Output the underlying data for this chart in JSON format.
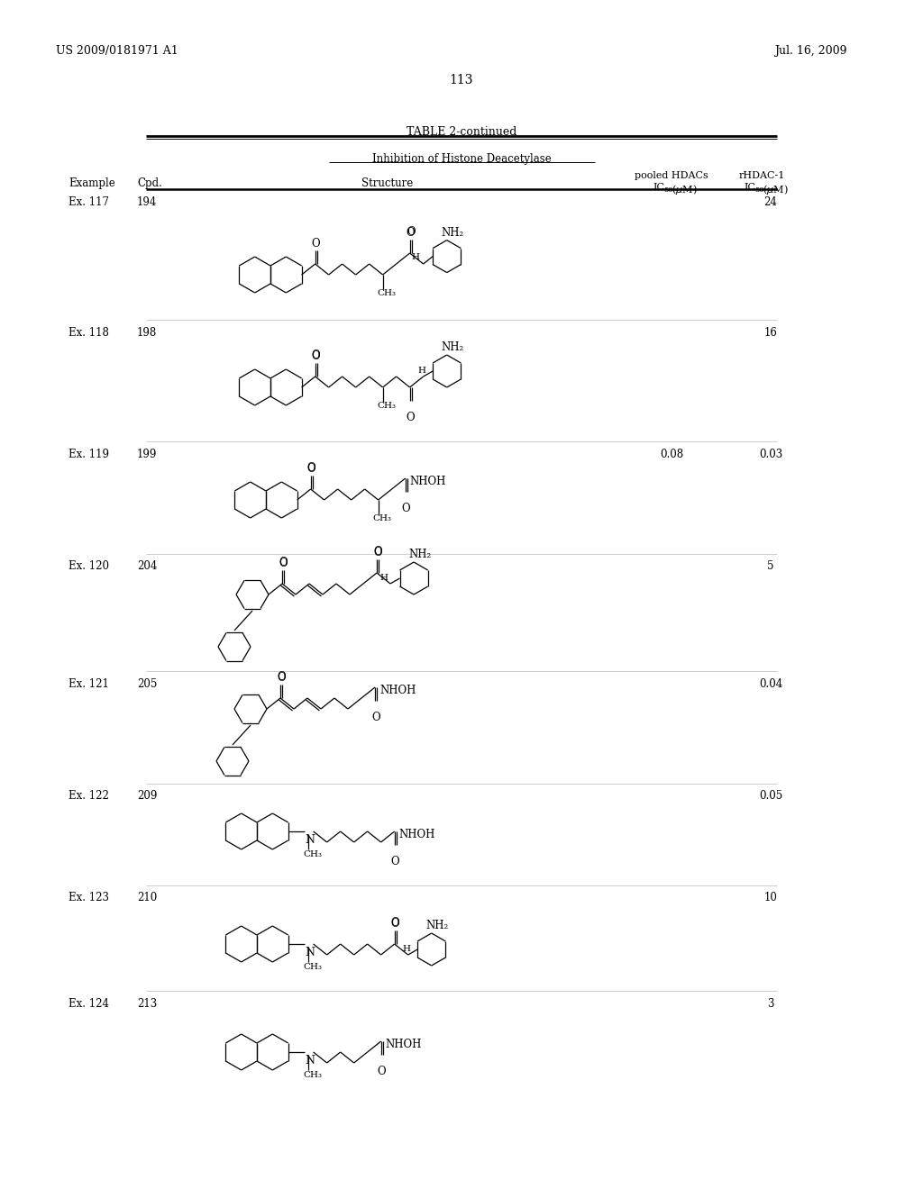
{
  "page_number": "113",
  "patent_number": "US 2009/0181971 A1",
  "patent_date": "Jul. 16, 2009",
  "table_title": "TABLE 2-continued",
  "table_subtitle": "Inhibition of Histone Deacetylase",
  "bg_color": "#ffffff",
  "text_color": "#000000",
  "rows": [
    {
      "example": "Ex. 117",
      "cpd": "194",
      "pooled": "",
      "rhdac": "24"
    },
    {
      "example": "Ex. 118",
      "cpd": "198",
      "pooled": "",
      "rhdac": "16"
    },
    {
      "example": "Ex. 119",
      "cpd": "199",
      "pooled": "0.08",
      "rhdac": "0.03"
    },
    {
      "example": "Ex. 120",
      "cpd": "204",
      "pooled": "",
      "rhdac": "5"
    },
    {
      "example": "Ex. 121",
      "cpd": "205",
      "pooled": "",
      "rhdac": "0.04"
    },
    {
      "example": "Ex. 122",
      "cpd": "209",
      "pooled": "",
      "rhdac": "0.05"
    },
    {
      "example": "Ex. 123",
      "cpd": "210",
      "pooled": "",
      "rhdac": "10"
    },
    {
      "example": "Ex. 124",
      "cpd": "213",
      "pooled": "",
      "rhdac": "3"
    }
  ]
}
